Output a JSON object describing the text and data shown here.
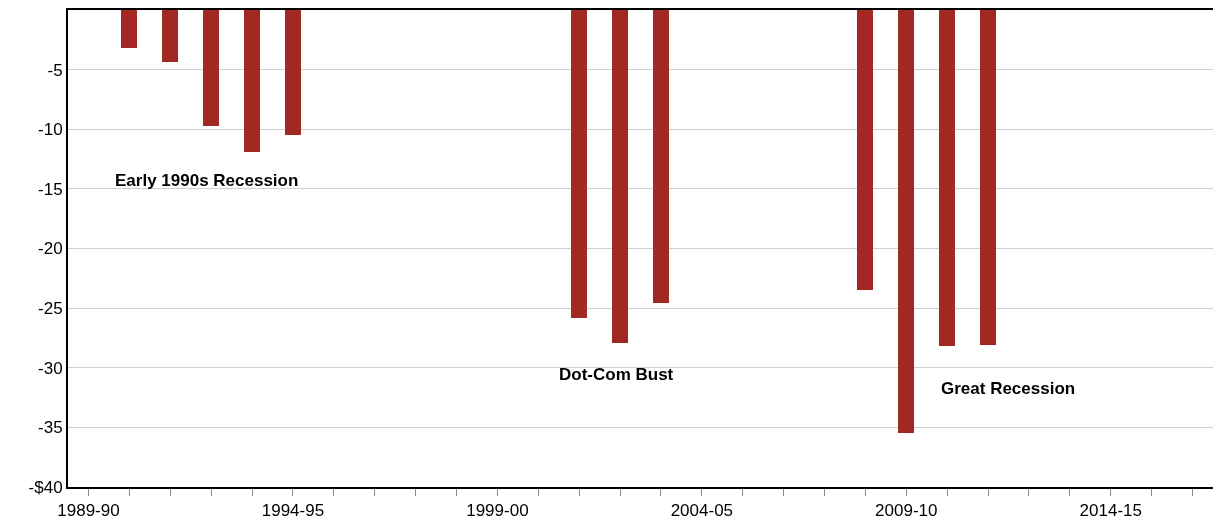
{
  "chart_data": {
    "type": "bar",
    "categories": [
      "1989-90",
      null,
      null,
      null,
      null,
      "1994-95",
      null,
      null,
      null,
      null,
      "1999-00",
      null,
      null,
      null,
      null,
      "2004-05",
      null,
      null,
      null,
      null,
      "2009-10",
      null,
      null,
      null,
      null,
      "2014-15",
      null,
      null
    ],
    "values": [
      null,
      -3.2,
      -4.4,
      -9.7,
      -11.9,
      -10.5,
      null,
      null,
      null,
      null,
      null,
      null,
      -25.8,
      -27.9,
      -24.6,
      null,
      null,
      null,
      null,
      -23.5,
      -35.5,
      -28.2,
      -28.1,
      null,
      null,
      null,
      null,
      null
    ],
    "color": "#a22923",
    "ylim": [
      -40,
      0
    ],
    "yticks": [
      {
        "value": -40,
        "label": "-$40"
      },
      -35,
      -30,
      -25,
      -20,
      -15,
      -10,
      -5,
      {
        "value": 0,
        "label": null
      }
    ],
    "grid": "y",
    "annotations": [
      "Early 1990s Recession",
      "Dot-Com Bust",
      "Great Recession"
    ]
  }
}
